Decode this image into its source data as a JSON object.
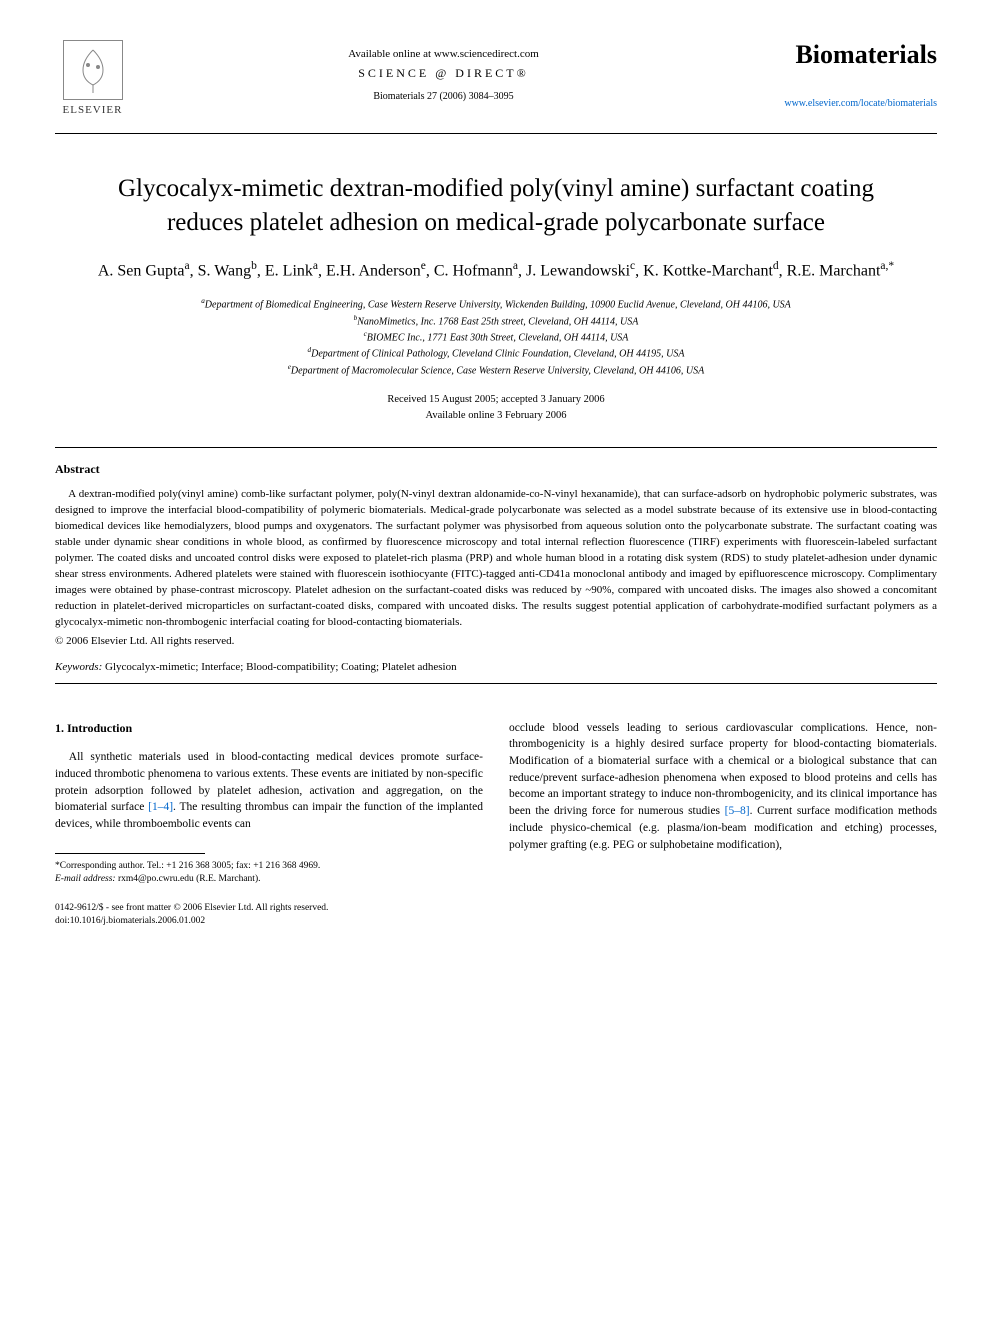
{
  "header": {
    "available_text": "Available online at www.sciencedirect.com",
    "science_direct": "SCIENCE @ DIRECT®",
    "citation": "Biomaterials 27 (2006) 3084–3095",
    "publisher": "ELSEVIER",
    "journal": "Biomaterials",
    "journal_url": "www.elsevier.com/locate/biomaterials"
  },
  "title": "Glycocalyx-mimetic dextran-modified poly(vinyl amine) surfactant coating reduces platelet adhesion on medical-grade polycarbonate surface",
  "authors_html": "A. Sen Gupta<sup>a</sup>, S. Wang<sup>b</sup>, E. Link<sup>a</sup>, E.H. Anderson<sup>e</sup>, C. Hofmann<sup>a</sup>, J. Lewandowski<sup>c</sup>, K. Kottke-Marchant<sup>d</sup>, R.E. Marchant<sup>a,*</sup>",
  "affiliations": {
    "a": "Department of Biomedical Engineering, Case Western Reserve University, Wickenden Building, 10900 Euclid Avenue, Cleveland, OH 44106, USA",
    "b": "NanoMimetics, Inc. 1768 East 25th street, Cleveland, OH 44114, USA",
    "c": "BIOMEC Inc., 1771 East 30th Street, Cleveland, OH 44114, USA",
    "d": "Department of Clinical Pathology, Cleveland Clinic Foundation, Cleveland, OH 44195, USA",
    "e": "Department of Macromolecular Science, Case Western Reserve University, Cleveland, OH 44106, USA"
  },
  "dates": {
    "received": "Received 15 August 2005; accepted 3 January 2006",
    "online": "Available online 3 February 2006"
  },
  "abstract": {
    "heading": "Abstract",
    "text": "A dextran-modified poly(vinyl amine) comb-like surfactant polymer, poly(N-vinyl dextran aldonamide-co-N-vinyl hexanamide), that can surface-adsorb on hydrophobic polymeric substrates, was designed to improve the interfacial blood-compatibility of polymeric biomaterials. Medical-grade polycarbonate was selected as a model substrate because of its extensive use in blood-contacting biomedical devices like hemodialyzers, blood pumps and oxygenators. The surfactant polymer was physisorbed from aqueous solution onto the polycarbonate substrate. The surfactant coating was stable under dynamic shear conditions in whole blood, as confirmed by fluorescence microscopy and total internal reflection fluorescence (TIRF) experiments with fluorescein-labeled surfactant polymer. The coated disks and uncoated control disks were exposed to platelet-rich plasma (PRP) and whole human blood in a rotating disk system (RDS) to study platelet-adhesion under dynamic shear stress environments. Adhered platelets were stained with fluorescein isothiocyante (FITC)-tagged anti-CD41a monoclonal antibody and imaged by epifluorescence microscopy. Complimentary images were obtained by phase-contrast microscopy. Platelet adhesion on the surfactant-coated disks was reduced by ~90%, compared with uncoated disks. The images also showed a concomitant reduction in platelet-derived microparticles on surfactant-coated disks, compared with uncoated disks. The results suggest potential application of carbohydrate-modified surfactant polymers as a glycocalyx-mimetic non-thrombogenic interfacial coating for blood-contacting biomaterials.",
    "copyright": "© 2006 Elsevier Ltd. All rights reserved."
  },
  "keywords": {
    "label": "Keywords:",
    "text": "Glycocalyx-mimetic; Interface; Blood-compatibility; Coating; Platelet adhesion"
  },
  "section": {
    "heading": "1. Introduction",
    "col1": "All synthetic materials used in blood-contacting medical devices promote surface-induced thrombotic phenomena to various extents. These events are initiated by non-specific protein adsorption followed by platelet adhesion, activation and aggregation, on the biomaterial surface [1–4]. The resulting thrombus can impair the function of the implanted devices, while thromboembolic events can",
    "col2": "occlude blood vessels leading to serious cardiovascular complications. Hence, non-thrombogenicity is a highly desired surface property for blood-contacting biomaterials. Modification of a biomaterial surface with a chemical or a biological substance that can reduce/prevent surface-adhesion phenomena when exposed to blood proteins and cells has become an important strategy to induce non-thrombogenicity, and its clinical importance has been the driving force for numerous studies [5–8]. Current surface modification methods include physico-chemical (e.g. plasma/ion-beam modification and etching) processes, polymer grafting (e.g. PEG or sulphobetaine modification),"
  },
  "footnote": {
    "corresponding": "*Corresponding author. Tel.: +1 216 368 3005; fax: +1 216 368 4969.",
    "email_label": "E-mail address:",
    "email": "rxm4@po.cwru.edu (R.E. Marchant)."
  },
  "footer": {
    "line1": "0142-9612/$ - see front matter © 2006 Elsevier Ltd. All rights reserved.",
    "line2": "doi:10.1016/j.biomaterials.2006.01.002"
  },
  "colors": {
    "link": "#0066cc",
    "text": "#000000",
    "bg": "#ffffff"
  }
}
